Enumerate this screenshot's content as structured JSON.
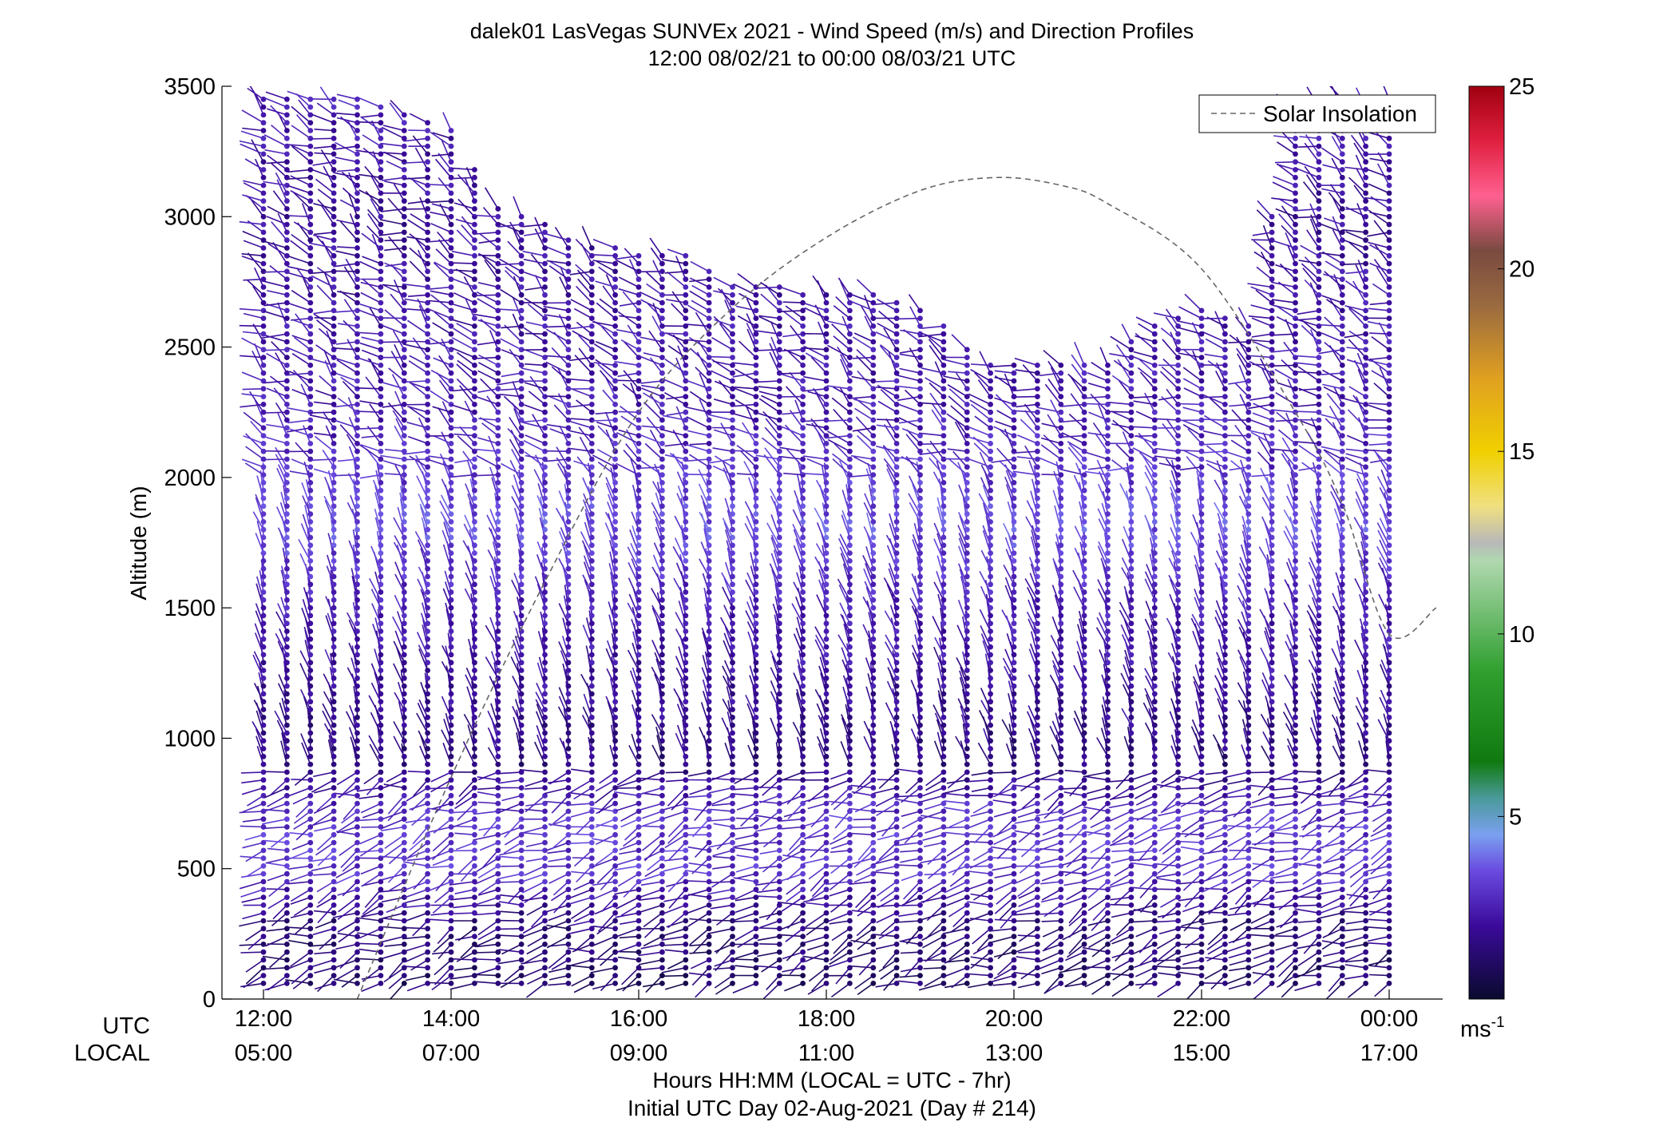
{
  "chart_data": {
    "type": "scatter",
    "plot_kind": "wind barb profile time-height",
    "title": "dalek01 LasVegas SUNVEx 2021 - Wind Speed (m/s) and Direction Profiles",
    "subtitle": "12:00 08/02/21 to 00:00 08/03/21  UTC",
    "ylabel": "Altitude (m)",
    "ylim": [
      0,
      3500
    ],
    "yticks": [
      0,
      500,
      1000,
      1500,
      2000,
      2500,
      3000,
      3500
    ],
    "xlim_hours_utc": [
      11.7,
      24.5
    ],
    "xticks": [
      {
        "hours_utc": 12,
        "utc": "12:00",
        "local": "05:00"
      },
      {
        "hours_utc": 14,
        "utc": "14:00",
        "local": "07:00"
      },
      {
        "hours_utc": 16,
        "utc": "16:00",
        "local": "09:00"
      },
      {
        "hours_utc": 18,
        "utc": "18:00",
        "local": "11:00"
      },
      {
        "hours_utc": 20,
        "utc": "20:00",
        "local": "13:00"
      },
      {
        "hours_utc": 22,
        "utc": "22:00",
        "local": "15:00"
      },
      {
        "hours_utc": 24,
        "utc": "00:00",
        "local": "17:00"
      }
    ],
    "xrow_labels": {
      "utc": "UTC",
      "local": "LOCAL"
    },
    "xlabel": "Hours HH:MM  (LOCAL = UTC - 7hr)",
    "xlabel2": "Initial UTC Day 02-Aug-2021 (Day # 214)",
    "legend": {
      "entries": [
        {
          "name": "Solar Insolation",
          "style": "dashed",
          "color": "#666666"
        }
      ],
      "position": "top-right"
    },
    "solar_insolation_curve": {
      "hours_utc": [
        13.0,
        14.0,
        15.0,
        16.0,
        17.0,
        18.0,
        19.0,
        19.8,
        20.5,
        21.0,
        22.0,
        23.0,
        23.5,
        24.0,
        24.5
      ],
      "altitude_equiv_m": [
        0,
        850,
        1600,
        2250,
        2650,
        2920,
        3100,
        3150,
        3120,
        3050,
        2800,
        2250,
        1900,
        1400,
        1500
      ]
    },
    "colorbar": {
      "label": "ms",
      "label_superscript": "-1",
      "range": [
        0,
        25
      ],
      "ticks": [
        5,
        10,
        15,
        20,
        25
      ],
      "stops": [
        {
          "v": 0,
          "c": "#0a0a2e"
        },
        {
          "v": 2,
          "c": "#3a0a9a"
        },
        {
          "v": 3.5,
          "c": "#6a4ae0"
        },
        {
          "v": 4.5,
          "c": "#7aa0f0"
        },
        {
          "v": 5.5,
          "c": "#4a9a9a"
        },
        {
          "v": 6.5,
          "c": "#107a10"
        },
        {
          "v": 9,
          "c": "#30a030"
        },
        {
          "v": 12,
          "c": "#b0d8b0"
        },
        {
          "v": 12.5,
          "c": "#b8b8b8"
        },
        {
          "v": 13.5,
          "c": "#f0e080"
        },
        {
          "v": 15,
          "c": "#f0d000"
        },
        {
          "v": 17,
          "c": "#e0a020"
        },
        {
          "v": 19,
          "c": "#9a6a40"
        },
        {
          "v": 20.5,
          "c": "#7a4a40"
        },
        {
          "v": 22,
          "c": "#ff6090"
        },
        {
          "v": 23.5,
          "c": "#e02040"
        },
        {
          "v": 25,
          "c": "#a00010"
        }
      ]
    },
    "profiles": {
      "time_step_hours": 0.25,
      "start_hours_utc": 12.0,
      "end_hours_utc": 24.0,
      "altitude_step_m": 30,
      "top_altitude_by_hours_utc": [
        [
          12.0,
          3450
        ],
        [
          13.0,
          3450
        ],
        [
          14.0,
          3350
        ],
        [
          14.5,
          3050
        ],
        [
          15.5,
          2900
        ],
        [
          16.5,
          2850
        ],
        [
          17.0,
          2750
        ],
        [
          18.5,
          2700
        ],
        [
          19.0,
          2650
        ],
        [
          19.75,
          2450
        ],
        [
          20.5,
          2450
        ],
        [
          21.0,
          2450
        ],
        [
          21.5,
          2600
        ],
        [
          22.0,
          2650
        ],
        [
          22.5,
          2600
        ],
        [
          23.0,
          3450
        ],
        [
          23.5,
          3450
        ],
        [
          24.0,
          3450
        ]
      ],
      "wind_speed_ms_by_altitude": [
        [
          0,
          1.0
        ],
        [
          300,
          1.5
        ],
        [
          500,
          3.0
        ],
        [
          700,
          3.0
        ],
        [
          900,
          1.5
        ],
        [
          1500,
          2.5
        ],
        [
          1800,
          3.5
        ],
        [
          2200,
          2.5
        ],
        [
          3000,
          2.0
        ],
        [
          3500,
          2.5
        ]
      ]
    }
  }
}
